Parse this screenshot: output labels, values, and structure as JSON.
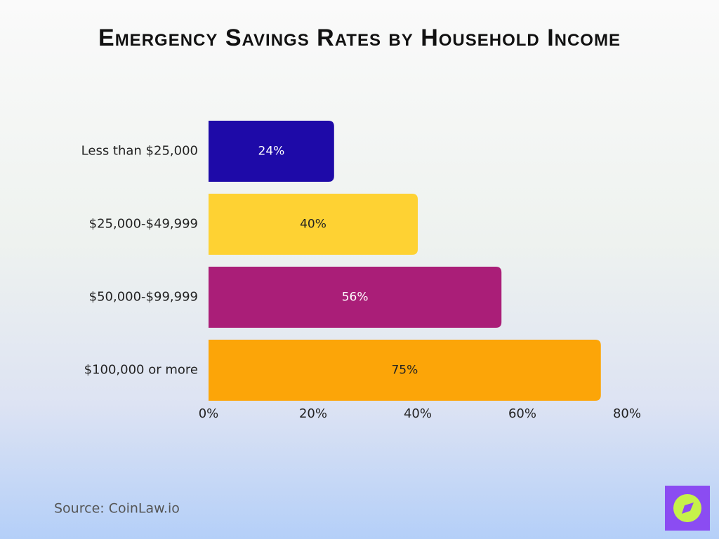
{
  "chart_data": {
    "type": "hbar",
    "title": "Emergency Savings Rates by Household Income",
    "categories": [
      "Less than $25,000",
      "$25,000-$49,999",
      "$50,000-$99,999",
      "$100,000 or more"
    ],
    "values": [
      24,
      40,
      56,
      75
    ],
    "value_labels": [
      "24%",
      "40%",
      "56%",
      "75%"
    ],
    "colors": [
      "#1e0aa8",
      "#fed233",
      "#aa1e78",
      "#fca508"
    ],
    "label_colors": [
      "#ffffff",
      "#222222",
      "#ffffff",
      "#222222"
    ],
    "xlim": [
      0,
      80
    ],
    "xticks": [
      {
        "value": 0,
        "label": "0%"
      },
      {
        "value": 20,
        "label": "20%"
      },
      {
        "value": 40,
        "label": "40%"
      },
      {
        "value": 60,
        "label": "60%"
      },
      {
        "value": 80,
        "label": "80%"
      }
    ],
    "source": "Source: CoinLaw.io"
  }
}
